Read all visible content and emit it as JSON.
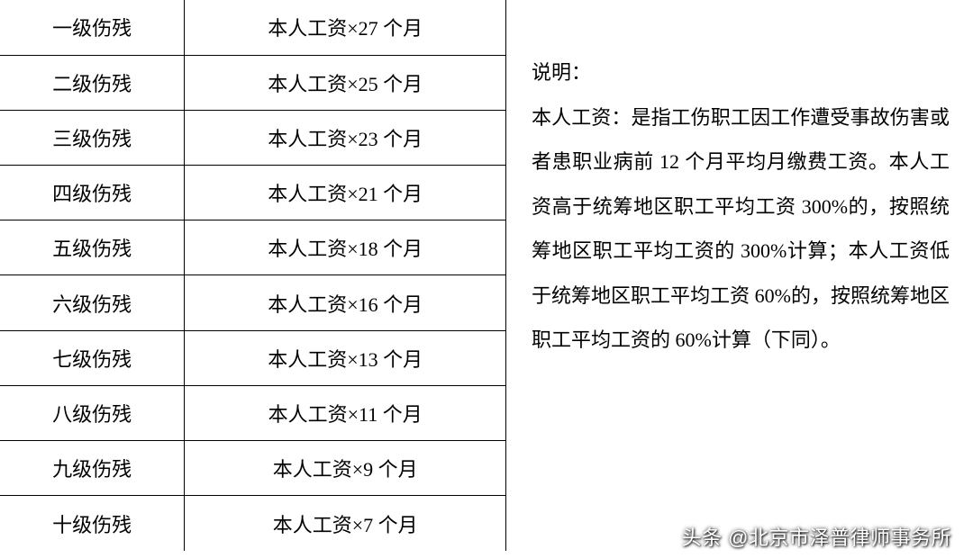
{
  "table": {
    "rows": [
      {
        "level": "一级伤残",
        "formula": "本人工资×27 个月"
      },
      {
        "level": "二级伤残",
        "formula": "本人工资×25 个月"
      },
      {
        "level": "三级伤残",
        "formula": "本人工资×23 个月"
      },
      {
        "level": "四级伤残",
        "formula": "本人工资×21 个月"
      },
      {
        "level": "五级伤残",
        "formula": "本人工资×18 个月"
      },
      {
        "level": "六级伤残",
        "formula": "本人工资×16 个月"
      },
      {
        "level": "七级伤残",
        "formula": "本人工资×13 个月"
      },
      {
        "level": "八级伤残",
        "formula": "本人工资×11 个月"
      },
      {
        "level": "九级伤残",
        "formula": "本人工资×9 个月"
      },
      {
        "level": "十级伤残",
        "formula": "本人工资×7 个月"
      }
    ],
    "border_color": "#000000",
    "font_size_pt": 16
  },
  "explain": {
    "label": "说明：",
    "body": "本人工资：是指工伤职工因工作遭受事故伤害或者患职业病前 12 个月平均月缴费工资。本人工资高于统筹地区职工平均工资 300%的，按照统筹地区职工平均工资的 300%计算；本人工资低于统筹地区职工平均工资 60%的，按照统筹地区职工平均工资的 60%计算（下同）。",
    "font_size_pt": 16,
    "line_height": 2.25
  },
  "attribution": "头条 @北京市泽普律师事务所",
  "colors": {
    "background": "#ffffff",
    "text": "#000000",
    "attribution_text": "#ffffff"
  }
}
